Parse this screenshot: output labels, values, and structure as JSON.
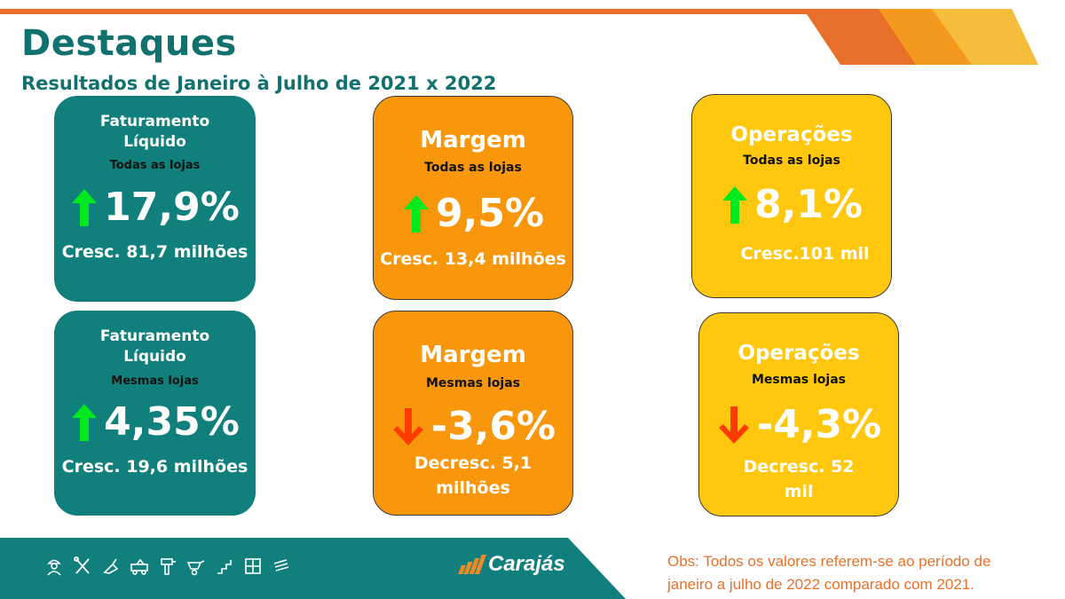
{
  "header": {
    "title": "Destaques",
    "subtitle": "Resultados de Janeiro à Julho de 2021 x 2022"
  },
  "colors": {
    "teal": "#11807c",
    "orange": "#f8970c",
    "yellow": "#ffc80f",
    "accent_orange": "#e8702a",
    "arrow_up": "#00e81e",
    "arrow_down": "#ff3c00"
  },
  "cards": {
    "fat_todas": {
      "name_line1": "Faturamento",
      "name_line2": "Líquido",
      "scope": "Todas as lojas",
      "value": "17,9%",
      "direction": "up",
      "detail_line1": "Cresc. 81,7 milhões",
      "detail_line2": ""
    },
    "margem_todas": {
      "name_line1": "Margem",
      "scope": "Todas as lojas",
      "value": "9,5%",
      "direction": "up",
      "detail_line1": "Cresc. 13,4 milhões",
      "detail_line2": ""
    },
    "oper_todas": {
      "name_line1": "Operações",
      "scope": "Todas as lojas",
      "value": "8,1%",
      "direction": "up",
      "detail_line1": "Cresc.101 mil",
      "detail_line2": ""
    },
    "fat_mesmas": {
      "name_line1": "Faturamento",
      "name_line2": "Líquido",
      "scope": "Mesmas lojas",
      "value": "4,35%",
      "direction": "up",
      "detail_line1": "Cresc. 19,6 milhões",
      "detail_line2": ""
    },
    "margem_mesmas": {
      "name_line1": "Margem",
      "scope": "Mesmas lojas",
      "value": "-3,6%",
      "direction": "down",
      "detail_line1": "Decresc. 5,1",
      "detail_line2": "milhões"
    },
    "oper_mesmas": {
      "name_line1": "Operações",
      "scope": "Mesmas lojas",
      "value": "-4,3%",
      "direction": "down",
      "detail_line1": "Decresc. 52",
      "detail_line2": "mil"
    }
  },
  "footer": {
    "brand": "Carajás",
    "obs_line1": "Obs: Todos os valores referem-se ao período de",
    "obs_line2": "janeiro a julho de 2022 comparado com 2021.",
    "icons": [
      "worker-icon",
      "tools-icon",
      "trowel-icon",
      "tow-truck-icon",
      "drill-icon",
      "wheelbarrow-icon",
      "stairs-icon",
      "tiles-icon",
      "lumber-icon"
    ]
  }
}
